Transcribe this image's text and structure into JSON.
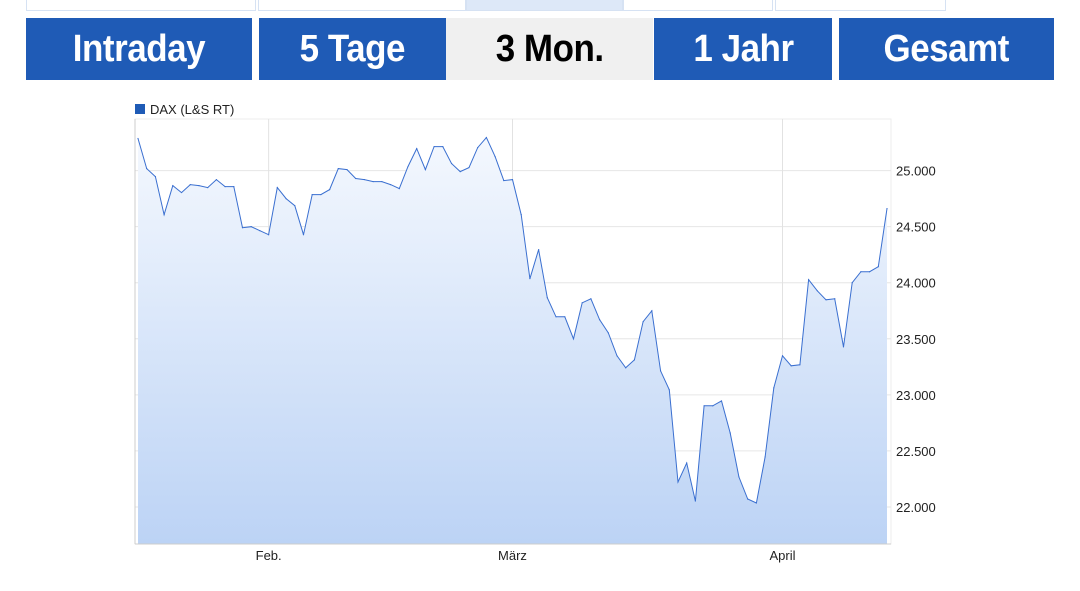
{
  "tabs": [
    {
      "label": "Intraday",
      "active": false
    },
    {
      "label": "5 Tage",
      "active": false
    },
    {
      "label": "3 Mon.",
      "active": true
    },
    {
      "label": "1 Jahr",
      "active": false
    },
    {
      "label": "Gesamt",
      "active": false
    }
  ],
  "colors": {
    "tab_bg": "#1f5bb6",
    "tab_active_bg": "#f0f0f0",
    "line": "#3a6fd0",
    "fill_top": "#f4f8fe",
    "fill_bottom": "#bcd3f5",
    "legend_swatch": "#1f5bb6"
  },
  "chart_data": {
    "type": "area",
    "legend": [
      {
        "name": "DAX (L&S RT)",
        "color": "#1f5bb6"
      }
    ],
    "legend_placement": "top-left",
    "y_axis_position": "right",
    "ylim": [
      21670,
      25460
    ],
    "y_ticks": [
      {
        "value": 25000,
        "label": "25.000"
      },
      {
        "value": 24500,
        "label": "24.500"
      },
      {
        "value": 24000,
        "label": "24.000"
      },
      {
        "value": 23500,
        "label": "23.500"
      },
      {
        "value": 23000,
        "label": "23.000"
      },
      {
        "value": 22500,
        "label": "22.500"
      },
      {
        "value": 22000,
        "label": "22.000"
      }
    ],
    "x_ticks": [
      {
        "date": "01.02.",
        "label": "Feb."
      },
      {
        "date": "01.03.",
        "label": "März"
      },
      {
        "date": "01.04.",
        "label": "April"
      }
    ],
    "grid": true,
    "series": [
      {
        "name": "DAX (L&S RT)",
        "x": [
          "17.01.",
          "18.01.",
          "19.01.",
          "20.01.",
          "21.01.",
          "22.01.",
          "23.01.",
          "24.01.",
          "25.01.",
          "26.01.",
          "27.01.",
          "28.01.",
          "29.01.",
          "30.01.",
          "31.01.",
          "01.02.",
          "02.02.",
          "03.02.",
          "04.02.",
          "05.02.",
          "06.02.",
          "07.02.",
          "08.02.",
          "09.02.",
          "10.02.",
          "11.02.",
          "12.02.",
          "13.02.",
          "14.02.",
          "15.02.",
          "16.02.",
          "17.02.",
          "18.02.",
          "19.02.",
          "20.02.",
          "21.02.",
          "22.02.",
          "23.02.",
          "24.02.",
          "25.02.",
          "26.02.",
          "27.02.",
          "28.02.",
          "01.03.",
          "02.03.",
          "03.03.",
          "04.03.",
          "05.03.",
          "06.03.",
          "07.03.",
          "08.03.",
          "09.03.",
          "10.03.",
          "11.03.",
          "12.03.",
          "13.03.",
          "14.03.",
          "15.03.",
          "16.03.",
          "17.03.",
          "18.03.",
          "19.03.",
          "20.03.",
          "21.03.",
          "22.03.",
          "23.03.",
          "24.03.",
          "25.03.",
          "26.03.",
          "27.03.",
          "28.03.",
          "29.03.",
          "30.03.",
          "31.03.",
          "01.04.",
          "02.04.",
          "03.04.",
          "04.04.",
          "05.04.",
          "06.04.",
          "07.04.",
          "08.04.",
          "09.04.",
          "10.04.",
          "11.04.",
          "12.04.",
          "13.04."
        ],
        "values": [
          25286,
          25018,
          24946,
          24607,
          24866,
          24804,
          24875,
          24866,
          24848,
          24920,
          24857,
          24857,
          24491,
          24500,
          24464,
          24428,
          24848,
          24750,
          24687,
          24428,
          24786,
          24786,
          24830,
          25018,
          25009,
          24929,
          24920,
          24902,
          24902,
          24875,
          24839,
          25036,
          25196,
          25009,
          25214,
          25214,
          25063,
          24991,
          25027,
          25205,
          25295,
          25125,
          24911,
          24920,
          24607,
          24036,
          24295,
          23866,
          23696,
          23696,
          23500,
          23821,
          23857,
          23670,
          23553,
          23348,
          23241,
          23312,
          23652,
          23750,
          23214,
          23045,
          22223,
          22392,
          22053,
          22902,
          22902,
          22946,
          22660,
          22268,
          22071,
          22036,
          22446,
          23062,
          23348,
          23259,
          23268,
          24027,
          23928,
          23848,
          23857,
          23428,
          24000,
          24098,
          24098,
          24143,
          24661
        ]
      }
    ]
  }
}
